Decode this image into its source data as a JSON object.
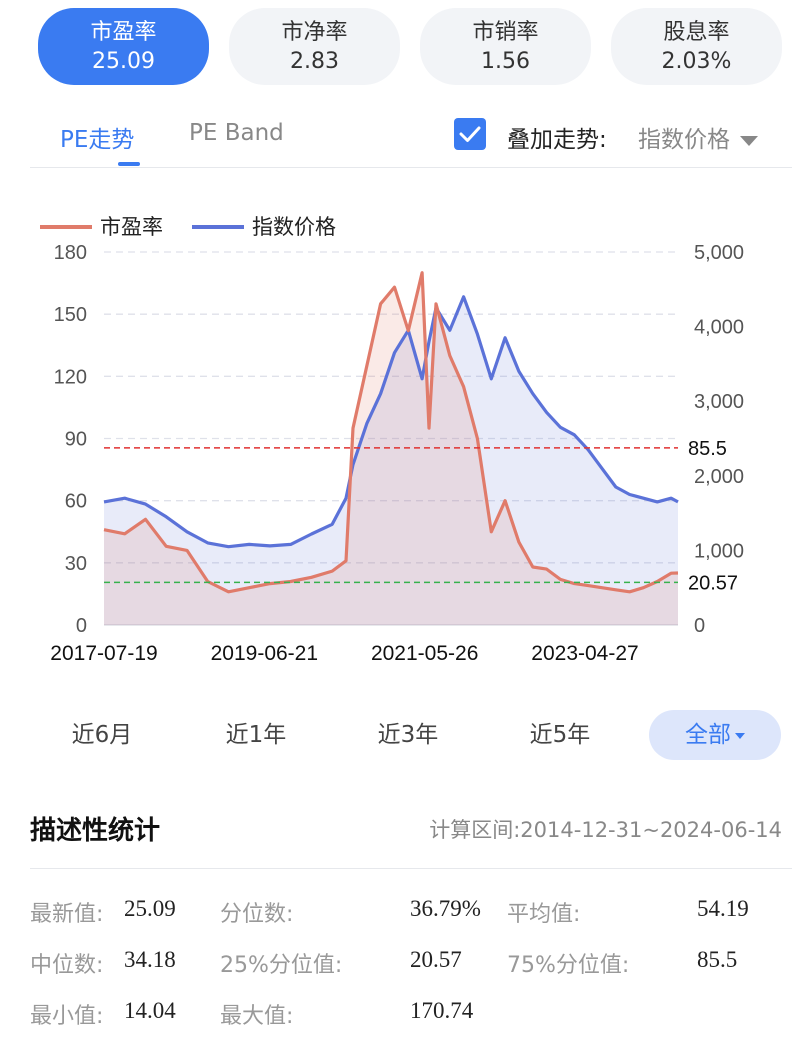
{
  "metrics": [
    {
      "label": "市盈率",
      "value": "25.09",
      "active": true
    },
    {
      "label": "市净率",
      "value": "2.83",
      "active": false
    },
    {
      "label": "市销率",
      "value": "1.56",
      "active": false
    },
    {
      "label": "股息率",
      "value": "2.03%",
      "active": false
    }
  ],
  "tabs": [
    {
      "label": "PE走势",
      "active": true
    },
    {
      "label": "PE Band",
      "active": false
    }
  ],
  "overlay": {
    "checked": true,
    "label": "叠加走势:",
    "selected": "指数价格"
  },
  "periods": [
    {
      "label": "近6月",
      "active": false
    },
    {
      "label": "近1年",
      "active": false
    },
    {
      "label": "近3年",
      "active": false
    },
    {
      "label": "近5年",
      "active": false
    },
    {
      "label": "全部",
      "active": true
    }
  ],
  "stats": {
    "title": "描述性统计",
    "range": "计算区间:2014-12-31~2024-06-14",
    "items": [
      {
        "label": "最新值:",
        "value": "25.09"
      },
      {
        "label": "分位数:",
        "value": "36.79%"
      },
      {
        "label": "平均值:",
        "value": "54.19"
      },
      {
        "label": "中位数:",
        "value": "34.18"
      },
      {
        "label": "25%分位值:",
        "value": "20.57"
      },
      {
        "label": "75%分位值:",
        "value": "85.5"
      },
      {
        "label": "最小值:",
        "value": "14.04"
      },
      {
        "label": "最大值:",
        "value": "170.74"
      }
    ]
  },
  "colors": {
    "accent": "#3a7bf1",
    "pe": "#e07b6a",
    "index": "#5b72d8",
    "upper_line": "#e03131",
    "lower_line": "#37b24d"
  },
  "chart_data": {
    "type": "line",
    "legend": [
      "市盈率",
      "指数价格"
    ],
    "x_tick_labels": [
      "2017-07-19",
      "2019-06-21",
      "2021-05-26",
      "2023-04-27"
    ],
    "y_left": {
      "ticks": [
        "180",
        "150",
        "120",
        "90",
        "60",
        "30",
        "0"
      ],
      "range": [
        0,
        180
      ]
    },
    "y_right": {
      "ticks": [
        "5,000",
        "4,000",
        "3,000",
        "2,000",
        "1,000",
        "0"
      ],
      "range": [
        0,
        5000
      ]
    },
    "reference_lines": [
      {
        "value": 85.5,
        "label": "85.5",
        "color": "#e03131"
      },
      {
        "value": 20.57,
        "label": "20.57",
        "color": "#37b24d"
      }
    ],
    "x_dates": [
      "2017-07",
      "2017-10",
      "2018-01",
      "2018-04",
      "2018-07",
      "2018-10",
      "2019-01",
      "2019-04",
      "2019-07",
      "2019-10",
      "2020-01",
      "2020-04",
      "2020-06",
      "2020-07",
      "2020-09",
      "2020-11",
      "2021-01",
      "2021-03",
      "2021-05",
      "2021-06",
      "2021-07",
      "2021-09",
      "2021-11",
      "2022-01",
      "2022-03",
      "2022-05",
      "2022-07",
      "2022-09",
      "2022-11",
      "2023-01",
      "2023-03",
      "2023-05",
      "2023-07",
      "2023-09",
      "2023-11",
      "2024-01",
      "2024-03",
      "2024-05",
      "2024-06"
    ],
    "series": [
      {
        "name": "市盈率",
        "values": [
          46,
          44,
          51,
          38,
          36,
          21,
          16,
          18,
          20,
          21,
          23,
          26,
          31,
          95,
          125,
          155,
          163,
          142,
          170,
          95,
          155,
          130,
          115,
          90,
          45,
          60,
          40,
          28,
          27,
          22,
          20,
          19,
          18,
          17,
          16,
          18,
          21,
          25,
          25.09
        ]
      },
      {
        "name": "指数价格",
        "values": [
          1650,
          1700,
          1620,
          1450,
          1250,
          1100,
          1050,
          1080,
          1060,
          1080,
          1220,
          1350,
          1700,
          2150,
          2700,
          3100,
          3650,
          3950,
          3300,
          3800,
          4250,
          3950,
          4400,
          3900,
          3300,
          3850,
          3400,
          3100,
          2850,
          2650,
          2550,
          2350,
          2100,
          1850,
          1750,
          1700,
          1650,
          1700,
          1650
        ]
      }
    ]
  }
}
